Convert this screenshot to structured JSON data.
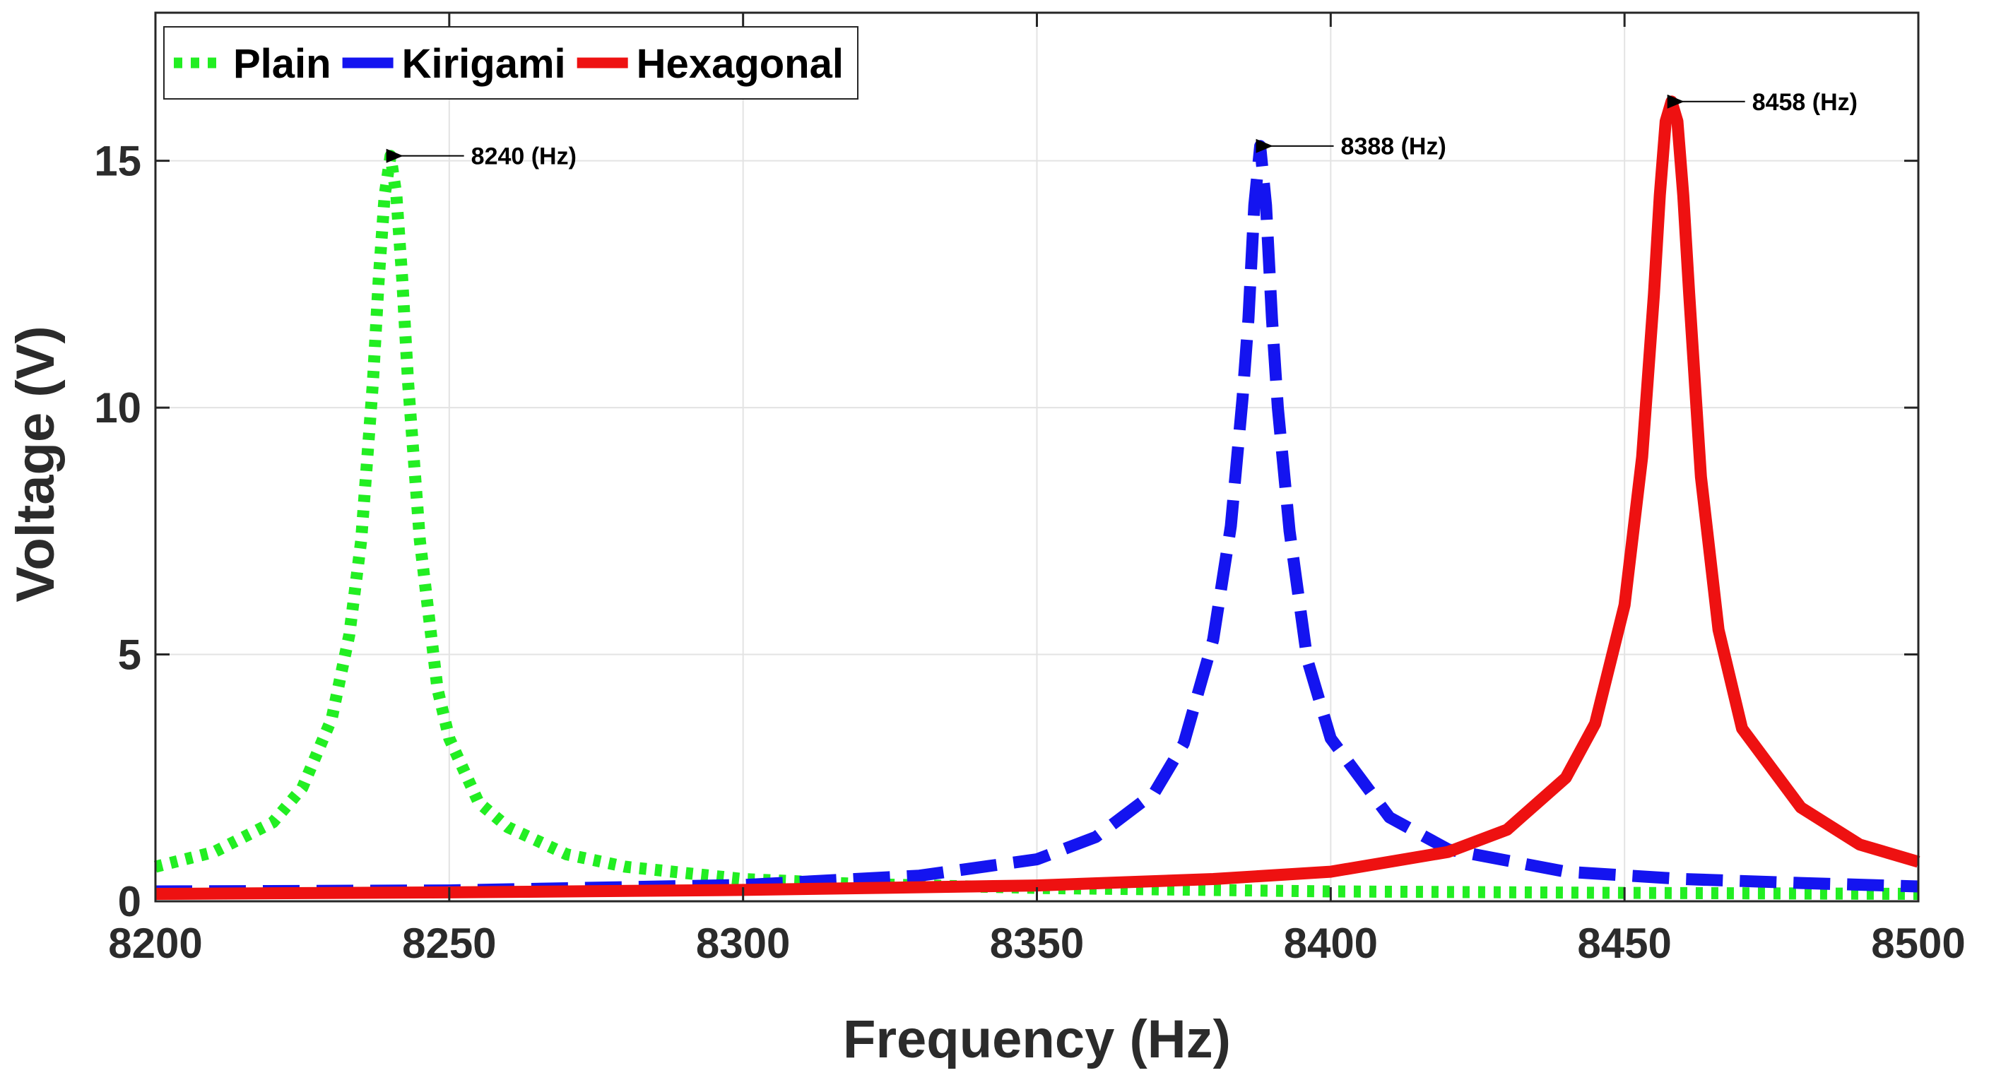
{
  "chart_data": {
    "type": "line",
    "title": "",
    "xlabel": "Frequency (Hz)",
    "ylabel": "Voltage (V)",
    "xlim": [
      8200,
      8500
    ],
    "ylim": [
      0,
      18
    ],
    "xticks": [
      8200,
      8250,
      8300,
      8350,
      8400,
      8450,
      8500
    ],
    "yticks": [
      0,
      5,
      10,
      15
    ],
    "grid": true,
    "legend": {
      "placement": "top-left",
      "orientation": "horizontal"
    },
    "series": [
      {
        "name": "Plain",
        "color": "#22ee22",
        "style": "dotted",
        "peak_x": 8240,
        "peak_y": 15.1,
        "x": [
          8200,
          8210,
          8220,
          8225,
          8230,
          8233,
          8235,
          8237,
          8238,
          8239,
          8240,
          8241,
          8242,
          8243,
          8245,
          8248,
          8250,
          8255,
          8260,
          8270,
          8280,
          8300,
          8320,
          8350,
          8400,
          8450,
          8500
        ],
        "y": [
          0.7,
          1.0,
          1.6,
          2.3,
          3.7,
          5.4,
          7.3,
          10.5,
          12.6,
          14.3,
          15.1,
          14.3,
          12.6,
          10.5,
          7.3,
          4.3,
          3.3,
          2.0,
          1.5,
          0.95,
          0.7,
          0.45,
          0.35,
          0.27,
          0.2,
          0.17,
          0.15
        ]
      },
      {
        "name": "Kirigami",
        "color": "#1414f0",
        "style": "dashed",
        "peak_x": 8388,
        "peak_y": 15.3,
        "x": [
          8200,
          8250,
          8300,
          8330,
          8350,
          8360,
          8370,
          8375,
          8380,
          8383,
          8385,
          8386,
          8387,
          8388,
          8389,
          8390,
          8391,
          8393,
          8396,
          8400,
          8410,
          8420,
          8440,
          8460,
          8480,
          8500
        ],
        "y": [
          0.2,
          0.22,
          0.33,
          0.52,
          0.85,
          1.3,
          2.2,
          3.2,
          5.3,
          7.6,
          10.2,
          11.8,
          14.1,
          15.3,
          14.1,
          11.8,
          10.0,
          7.5,
          4.9,
          3.3,
          1.7,
          1.05,
          0.6,
          0.45,
          0.37,
          0.3
        ]
      },
      {
        "name": "Hexagonal",
        "color": "#ee1111",
        "style": "solid",
        "peak_x": 8458,
        "peak_y": 16.2,
        "x": [
          8200,
          8250,
          8300,
          8350,
          8380,
          8400,
          8420,
          8430,
          8440,
          8445,
          8450,
          8453,
          8455,
          8456,
          8457,
          8458,
          8459,
          8460,
          8461,
          8463,
          8466,
          8470,
          8480,
          8490,
          8500
        ],
        "y": [
          0.15,
          0.18,
          0.23,
          0.32,
          0.45,
          0.6,
          1.0,
          1.45,
          2.5,
          3.6,
          6.0,
          9.0,
          12.3,
          14.3,
          15.8,
          16.2,
          15.8,
          14.3,
          12.3,
          8.6,
          5.5,
          3.5,
          1.9,
          1.15,
          0.8
        ]
      }
    ],
    "annotations": [
      {
        "label": "8240 (Hz)",
        "x": 8240,
        "y": 15.1
      },
      {
        "label": "8388 (Hz)",
        "x": 8388,
        "y": 15.3
      },
      {
        "label": "8458 (Hz)",
        "x": 8458,
        "y": 16.2
      }
    ]
  }
}
